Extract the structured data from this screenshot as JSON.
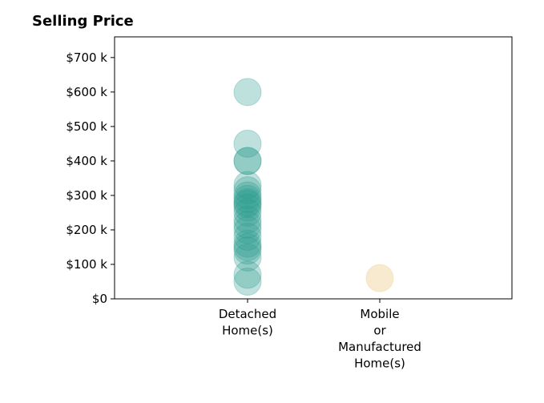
{
  "chart_data": {
    "type": "scatter",
    "title": "Selling Price",
    "xlabel": "",
    "ylabel": "",
    "categories": [
      "Detached\nHome(s)",
      "Mobile\nor\nManufactured\nHome(s)"
    ],
    "ylim": [
      0,
      760000
    ],
    "yticks": [
      0,
      100000,
      200000,
      300000,
      400000,
      500000,
      600000,
      700000
    ],
    "ytick_labels": [
      "$0",
      "$100 k",
      "$200 k",
      "$300 k",
      "$400 k",
      "$500 k",
      "$600 k",
      "$700 k"
    ],
    "grid": false,
    "series": [
      {
        "category": "Detached\nHome(s)",
        "color": "#2a9d8f",
        "values": [
          600000,
          450000,
          400000,
          400000,
          330000,
          315000,
          300000,
          290000,
          280000,
          275000,
          265000,
          250000,
          230000,
          215000,
          200000,
          180000,
          160000,
          150000,
          140000,
          120000,
          70000,
          50000
        ]
      },
      {
        "category": "Mobile\nor\nManufactured\nHome(s)",
        "color": "#f0d9a8",
        "values": [
          60000
        ]
      }
    ]
  }
}
